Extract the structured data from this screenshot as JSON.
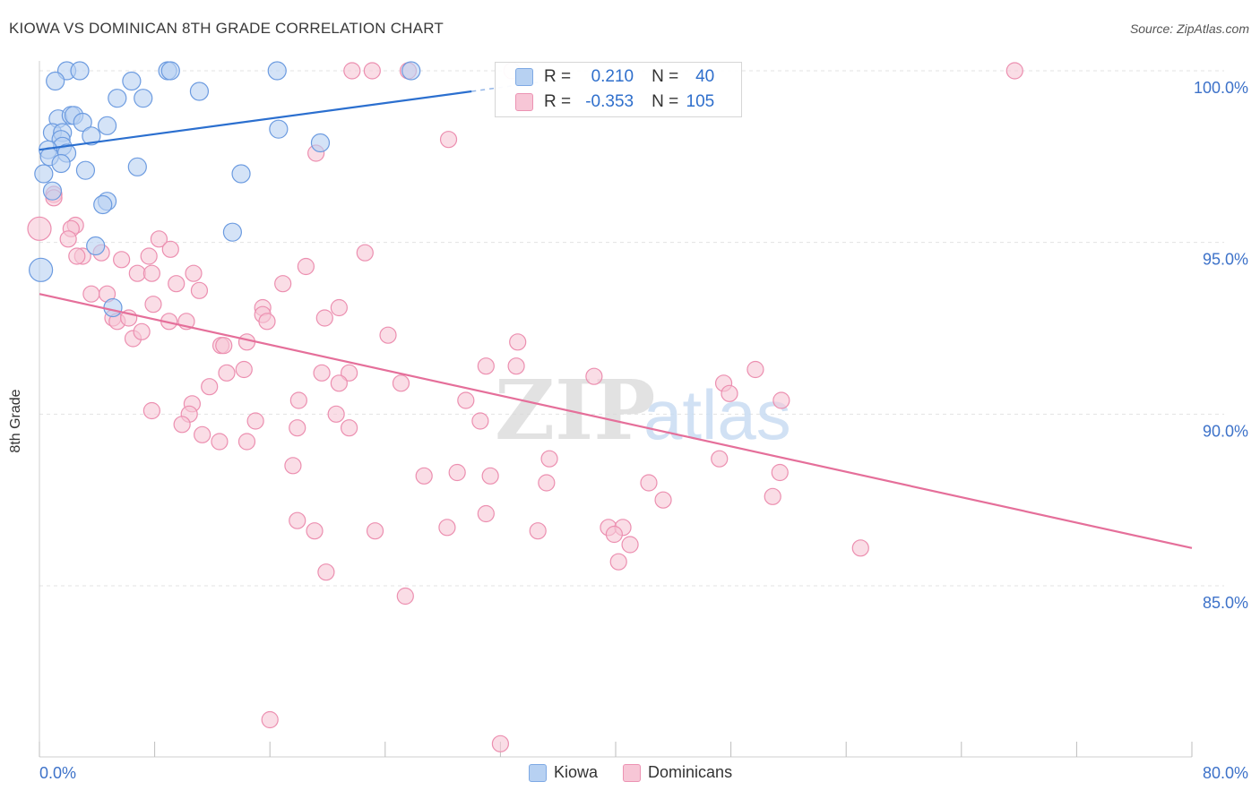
{
  "title": "KIOWA VS DOMINICAN 8TH GRADE CORRELATION CHART",
  "source": "Source: ZipAtlas.com",
  "watermark": {
    "zip": "ZIP",
    "atlas": "atlas"
  },
  "legend": {
    "rows": [
      {
        "r_label": "R =",
        "r_value": "0.210",
        "n_label": "N =",
        "n_value": "40",
        "color": "#5b8fd9"
      },
      {
        "r_label": "R =",
        "r_value": "-0.353",
        "n_label": "N =",
        "n_value": "105",
        "color": "#e8769f"
      }
    ]
  },
  "bottom_legend": {
    "kiowa": "Kiowa",
    "dominicans": "Dominicans"
  },
  "colors": {
    "kiowa_fill": "#b7d1f2",
    "kiowa_stroke": "#6c9be0",
    "kiowa_line": "#2b6fcf",
    "dom_fill": "#f7c6d6",
    "dom_stroke": "#ec8fb0",
    "dom_line": "#e56f9a",
    "axis_tick_text": "#3d72c9",
    "grid": "#e3e3e3"
  },
  "chart_data": {
    "type": "scatter",
    "title": "KIOWA VS DOMINICAN 8TH GRADE CORRELATION CHART",
    "xlabel": "",
    "ylabel": "8th Grade",
    "xlim": [
      0,
      80
    ],
    "ylim": [
      80.5,
      101
    ],
    "x_tick_labels": [
      "0.0%",
      "80.0%"
    ],
    "y_ticks": [
      85,
      90,
      95,
      100
    ],
    "y_tick_labels": [
      "85.0%",
      "90.0%",
      "95.0%",
      "100.0%"
    ],
    "grid": true,
    "series": [
      {
        "name": "Kiowa",
        "r": 0.21,
        "n": 40,
        "trend": {
          "x": [
            0,
            30
          ],
          "y": [
            97.7,
            99.4
          ]
        },
        "points": [
          [
            1.9,
            100
          ],
          [
            2.8,
            100
          ],
          [
            8.9,
            100
          ],
          [
            9.1,
            100
          ],
          [
            16.5,
            100
          ],
          [
            25.8,
            100
          ],
          [
            1.1,
            99.7
          ],
          [
            6.4,
            99.7
          ],
          [
            5.4,
            99.2
          ],
          [
            7.2,
            99.2
          ],
          [
            11.1,
            99.4
          ],
          [
            1.3,
            98.6
          ],
          [
            2.2,
            98.7
          ],
          [
            2.4,
            98.7
          ],
          [
            3.0,
            98.5
          ],
          [
            4.7,
            98.4
          ],
          [
            0.9,
            98.2
          ],
          [
            1.6,
            98.2
          ],
          [
            1.5,
            98.0
          ],
          [
            1.6,
            97.8
          ],
          [
            3.6,
            98.1
          ],
          [
            16.6,
            98.3
          ],
          [
            19.5,
            97.9
          ],
          [
            0.6,
            97.7
          ],
          [
            0.7,
            97.5
          ],
          [
            1.9,
            97.6
          ],
          [
            6.8,
            97.2
          ],
          [
            3.2,
            97.1
          ],
          [
            0.3,
            97.0
          ],
          [
            14.0,
            97.0
          ],
          [
            0.9,
            96.5
          ],
          [
            4.7,
            96.2
          ],
          [
            4.4,
            96.1
          ],
          [
            13.4,
            95.3
          ],
          [
            3.9,
            94.9
          ],
          [
            0.1,
            94.2
          ],
          [
            5.1,
            93.1
          ],
          [
            1.5,
            97.3
          ]
        ],
        "sizes": [
          20,
          20,
          20,
          20,
          20,
          20,
          20,
          20,
          20,
          20,
          20,
          20,
          20,
          20,
          20,
          20,
          20,
          20,
          20,
          20,
          20,
          20,
          20,
          20,
          20,
          20,
          20,
          20,
          20,
          20,
          20,
          20,
          20,
          20,
          20,
          26,
          20,
          20
        ]
      },
      {
        "name": "Dominicans",
        "r": -0.353,
        "n": 105,
        "trend": {
          "x": [
            0,
            80
          ],
          "y": [
            93.5,
            86.1
          ]
        },
        "points": [
          [
            21.7,
            100
          ],
          [
            23.1,
            100
          ],
          [
            25.6,
            100
          ],
          [
            32.8,
            100
          ],
          [
            67.7,
            100
          ],
          [
            28.4,
            98
          ],
          [
            19.2,
            97.6
          ],
          [
            1.0,
            96.4
          ],
          [
            1.0,
            96.3
          ],
          [
            0.0,
            95.4
          ],
          [
            2.5,
            95.5
          ],
          [
            2.2,
            95.4
          ],
          [
            2.0,
            95.1
          ],
          [
            8.3,
            95.1
          ],
          [
            3.0,
            94.6
          ],
          [
            4.3,
            94.7
          ],
          [
            2.6,
            94.6
          ],
          [
            9.1,
            94.8
          ],
          [
            5.7,
            94.5
          ],
          [
            7.6,
            94.6
          ],
          [
            22.6,
            94.7
          ],
          [
            18.5,
            94.3
          ],
          [
            6.8,
            94.1
          ],
          [
            7.8,
            94.1
          ],
          [
            10.7,
            94.1
          ],
          [
            9.5,
            93.8
          ],
          [
            16.9,
            93.8
          ],
          [
            11.1,
            93.6
          ],
          [
            3.6,
            93.5
          ],
          [
            4.7,
            93.5
          ],
          [
            7.9,
            93.2
          ],
          [
            20.8,
            93.1
          ],
          [
            15.5,
            93.1
          ],
          [
            15.5,
            92.9
          ],
          [
            19.8,
            92.8
          ],
          [
            5.1,
            92.8
          ],
          [
            5.4,
            92.7
          ],
          [
            6.2,
            92.8
          ],
          [
            9.0,
            92.7
          ],
          [
            10.2,
            92.7
          ],
          [
            15.8,
            92.7
          ],
          [
            12.6,
            92.0
          ],
          [
            6.5,
            92.2
          ],
          [
            7.1,
            92.4
          ],
          [
            24.2,
            92.3
          ],
          [
            33.2,
            92.1
          ],
          [
            12.8,
            92.0
          ],
          [
            14.4,
            92.1
          ],
          [
            33.1,
            91.4
          ],
          [
            19.6,
            91.2
          ],
          [
            21.5,
            91.2
          ],
          [
            14.2,
            91.3
          ],
          [
            13.0,
            91.2
          ],
          [
            31.0,
            91.4
          ],
          [
            49.7,
            91.3
          ],
          [
            38.5,
            91.1
          ],
          [
            11.8,
            90.8
          ],
          [
            20.8,
            90.9
          ],
          [
            25.1,
            90.9
          ],
          [
            47.5,
            90.9
          ],
          [
            47.9,
            90.6
          ],
          [
            51.5,
            90.4
          ],
          [
            29.6,
            90.4
          ],
          [
            18.0,
            90.4
          ],
          [
            10.6,
            90.3
          ],
          [
            20.6,
            90.0
          ],
          [
            10.4,
            90.0
          ],
          [
            9.9,
            89.7
          ],
          [
            15.0,
            89.8
          ],
          [
            30.6,
            89.8
          ],
          [
            17.9,
            89.6
          ],
          [
            21.5,
            89.6
          ],
          [
            11.3,
            89.4
          ],
          [
            12.5,
            89.2
          ],
          [
            14.4,
            89.2
          ],
          [
            35.4,
            88.7
          ],
          [
            47.2,
            88.7
          ],
          [
            17.6,
            88.5
          ],
          [
            51.4,
            88.3
          ],
          [
            26.7,
            88.2
          ],
          [
            29.0,
            88.3
          ],
          [
            31.3,
            88.2
          ],
          [
            35.2,
            88.0
          ],
          [
            42.3,
            88.0
          ],
          [
            43.3,
            87.5
          ],
          [
            50.9,
            87.6
          ],
          [
            31.0,
            87.1
          ],
          [
            17.9,
            86.9
          ],
          [
            28.3,
            86.7
          ],
          [
            34.6,
            86.6
          ],
          [
            39.5,
            86.7
          ],
          [
            40.5,
            86.7
          ],
          [
            23.3,
            86.6
          ],
          [
            19.1,
            86.6
          ],
          [
            39.9,
            86.5
          ],
          [
            41.0,
            86.2
          ],
          [
            57.0,
            86.1
          ],
          [
            40.2,
            85.7
          ],
          [
            19.9,
            85.4
          ],
          [
            25.4,
            84.7
          ],
          [
            16.0,
            81.1
          ],
          [
            32.0,
            80.4
          ],
          [
            7.8,
            90.1
          ]
        ],
        "sizes": [
          18,
          18,
          18,
          18,
          18,
          18,
          18,
          18,
          18,
          26,
          18,
          18,
          18,
          18,
          18,
          18,
          18,
          18,
          18,
          18,
          18,
          18,
          18,
          18,
          18,
          18,
          18,
          18,
          18,
          18,
          18,
          18,
          18,
          18,
          18,
          18,
          18,
          18,
          18,
          18,
          18,
          18,
          18,
          18,
          18,
          18,
          18,
          18,
          18,
          18,
          18,
          18,
          18,
          18,
          18,
          18,
          18,
          18,
          18,
          18,
          18,
          18,
          18,
          18,
          18,
          18,
          18,
          18,
          18,
          18,
          18,
          18,
          18,
          18,
          18,
          18,
          18,
          18,
          18,
          18,
          18,
          18,
          18,
          18,
          18,
          18,
          18,
          18,
          18,
          18,
          18,
          18,
          18,
          18,
          18,
          18,
          18,
          18,
          18,
          18,
          18,
          18,
          18,
          18,
          18,
          18,
          18,
          18
        ]
      }
    ]
  }
}
